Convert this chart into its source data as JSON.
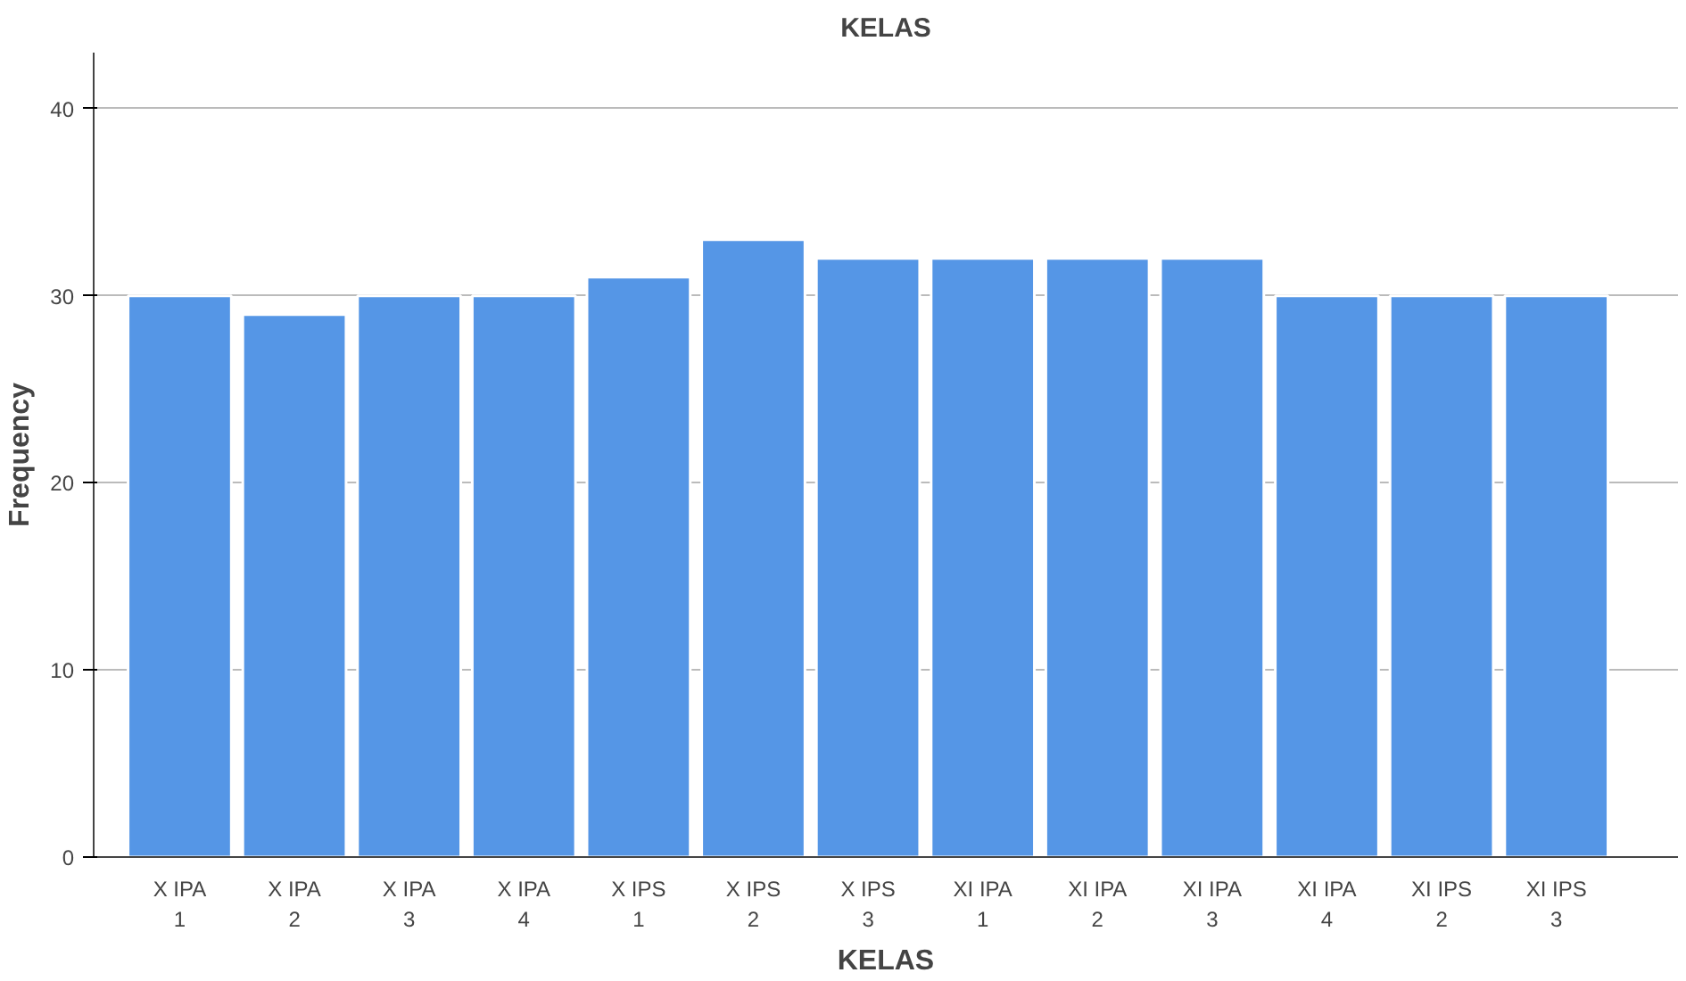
{
  "chart_data": {
    "type": "bar",
    "title": "KELAS",
    "xlabel": "KELAS",
    "ylabel": "Frequency",
    "categories": [
      "X IPA 1",
      "X IPA 2",
      "X IPA 3",
      "X IPA 4",
      "X IPS 1",
      "X IPS 2",
      "X IPS 3",
      "XI IPA 1",
      "XI IPA 2",
      "XI IPA 3",
      "XI IPA 4",
      "XI IPS 2",
      "XI IPS 3"
    ],
    "values": [
      30,
      29,
      30,
      30,
      31,
      33,
      32,
      32,
      32,
      32,
      30,
      30,
      30
    ],
    "color": "#5596e6",
    "ylim": [
      0,
      43
    ],
    "yticks": [
      0,
      10,
      20,
      30,
      40
    ],
    "grid": "y"
  }
}
